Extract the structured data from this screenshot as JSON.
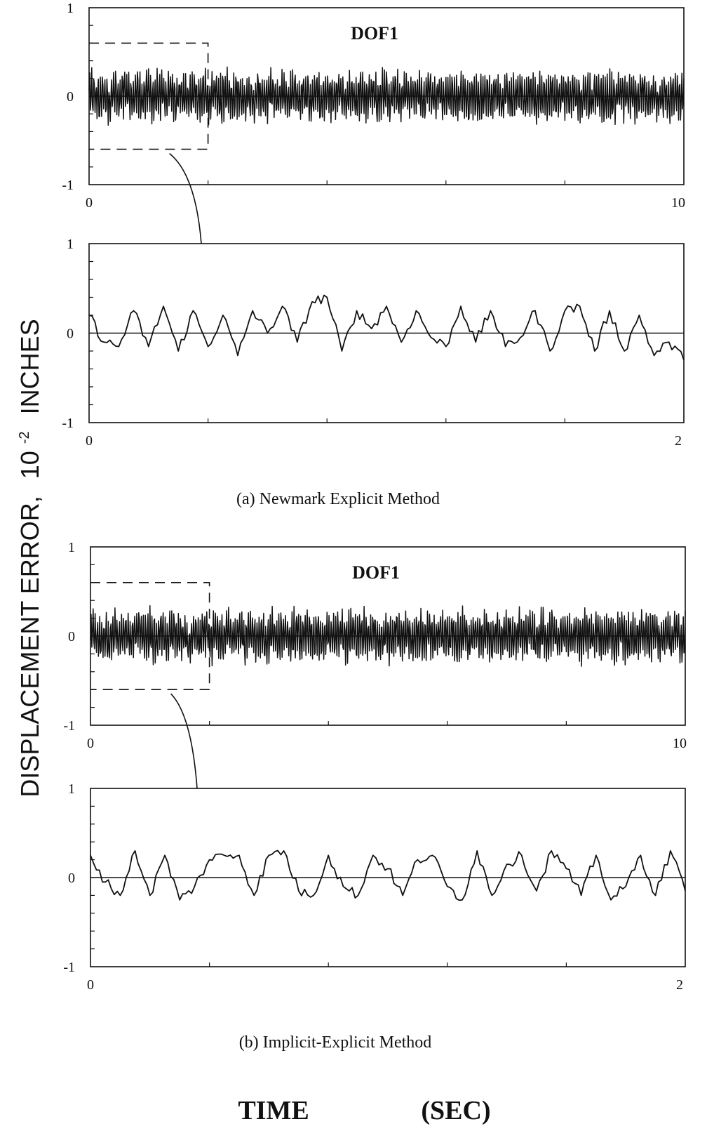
{
  "figure": {
    "ylabel": "DISPLACEMENT ERROR,",
    "ylabel_unit": "INCHES",
    "ylabel_scale_base": "10",
    "ylabel_scale_exp": "-2",
    "xlabel_main": "TIME",
    "xlabel_unit": "(SEC)",
    "caption_a": "(a) Newmark Explicit Method",
    "caption_b": "(b) Implicit-Explicit Method"
  },
  "chart_data": [
    {
      "id": "a_full",
      "type": "line",
      "title": "DOF1",
      "xlim": [
        0,
        10
      ],
      "ylim": [
        -1,
        1
      ],
      "xticks_labeled": [
        "0",
        "10"
      ],
      "yticks": [
        "1",
        "0",
        "-1"
      ],
      "zoom_window": {
        "x": [
          0,
          2
        ],
        "y": [
          -0.6,
          0.6
        ]
      },
      "signal": {
        "samples": 900,
        "amplitude_envelope": [
          -0.42,
          0.42
        ],
        "typical_range": [
          -0.3,
          0.3
        ]
      },
      "series": [
        {
          "x": [
            0,
            0.5,
            1,
            1.5,
            2,
            2.5,
            3,
            3.5,
            4,
            4.5,
            5,
            5.5,
            6,
            6.5,
            7,
            7.5,
            8,
            8.5,
            9,
            9.5,
            10
          ],
          "y": [
            0.2,
            -0.25,
            0.3,
            -0.2,
            0.25,
            0.3,
            -0.2,
            0.28,
            -0.3,
            0.25,
            -0.2,
            0.3,
            -0.25,
            0.28,
            -0.3,
            0.25,
            0.35,
            -0.25,
            0.3,
            -0.25,
            -0.1
          ]
        }
      ]
    },
    {
      "id": "a_zoom",
      "type": "line",
      "xlim": [
        0,
        2
      ],
      "ylim": [
        -1,
        1
      ],
      "xticks_labeled": [
        "0",
        "2"
      ],
      "yticks": [
        "1",
        "0",
        "-1"
      ],
      "series": [
        {
          "x": [
            0,
            0.05,
            0.1,
            0.15,
            0.2,
            0.25,
            0.3,
            0.35,
            0.4,
            0.45,
            0.5,
            0.55,
            0.6,
            0.65,
            0.7,
            0.75,
            0.8,
            0.85,
            0.9,
            0.95,
            1.0,
            1.05,
            1.1,
            1.15,
            1.2,
            1.25,
            1.3,
            1.35,
            1.4,
            1.45,
            1.5,
            1.55,
            1.6,
            1.65,
            1.7,
            1.75,
            1.8,
            1.85,
            1.9,
            1.95,
            2.0
          ],
          "y": [
            0.2,
            -0.1,
            -0.15,
            0.25,
            -0.15,
            0.3,
            -0.2,
            0.25,
            -0.15,
            0.2,
            -0.25,
            0.25,
            0.0,
            0.3,
            -0.1,
            0.35,
            0.4,
            -0.2,
            0.25,
            0.05,
            0.3,
            -0.1,
            0.25,
            -0.05,
            -0.15,
            0.3,
            -0.1,
            0.25,
            -0.15,
            -0.05,
            0.25,
            -0.2,
            0.25,
            0.3,
            -0.2,
            0.25,
            -0.2,
            0.2,
            -0.25,
            -0.1,
            -0.3
          ]
        }
      ]
    },
    {
      "id": "b_full",
      "type": "line",
      "title": "DOF1",
      "xlim": [
        0,
        10
      ],
      "ylim": [
        -1,
        1
      ],
      "xticks_labeled": [
        "0",
        "10"
      ],
      "yticks": [
        "1",
        "0",
        "-1"
      ],
      "zoom_window": {
        "x": [
          0,
          2
        ],
        "y": [
          -0.6,
          0.6
        ]
      },
      "signal": {
        "samples": 900,
        "amplitude_envelope": [
          -0.38,
          0.4
        ],
        "typical_range": [
          -0.3,
          0.3
        ]
      },
      "series": [
        {
          "x": [
            0,
            0.5,
            1,
            1.5,
            2,
            2.5,
            3,
            3.5,
            4,
            4.5,
            5,
            5.5,
            6,
            6.5,
            7,
            7.5,
            8,
            8.5,
            9,
            9.5,
            10
          ],
          "y": [
            0.25,
            -0.25,
            0.3,
            -0.3,
            0.4,
            -0.2,
            0.28,
            -0.3,
            0.25,
            -0.35,
            0.3,
            -0.25,
            0.35,
            -0.3,
            0.3,
            -0.25,
            0.28,
            -0.3,
            0.3,
            -0.25,
            -0.2
          ]
        }
      ]
    },
    {
      "id": "b_zoom",
      "type": "line",
      "xlim": [
        0,
        2
      ],
      "ylim": [
        -1,
        1
      ],
      "xticks_labeled": [
        "0",
        "2"
      ],
      "yticks": [
        "1",
        "0",
        "-1"
      ],
      "series": [
        {
          "x": [
            0,
            0.05,
            0.1,
            0.15,
            0.2,
            0.25,
            0.3,
            0.35,
            0.4,
            0.45,
            0.5,
            0.55,
            0.6,
            0.65,
            0.7,
            0.75,
            0.8,
            0.85,
            0.9,
            0.95,
            1.0,
            1.05,
            1.1,
            1.15,
            1.2,
            1.25,
            1.3,
            1.35,
            1.4,
            1.45,
            1.5,
            1.55,
            1.6,
            1.65,
            1.7,
            1.75,
            1.8,
            1.85,
            1.9,
            1.95,
            2.0
          ],
          "y": [
            0.25,
            -0.05,
            -0.2,
            0.3,
            -0.2,
            0.25,
            -0.25,
            -0.1,
            0.2,
            0.25,
            0.25,
            -0.2,
            0.25,
            0.3,
            -0.15,
            -0.2,
            0.25,
            -0.1,
            -0.2,
            0.25,
            0.1,
            -0.2,
            0.2,
            0.25,
            -0.1,
            -0.25,
            0.3,
            -0.2,
            0.15,
            0.25,
            -0.15,
            0.3,
            0.1,
            -0.2,
            0.25,
            -0.25,
            -0.1,
            0.25,
            -0.2,
            0.3,
            -0.15
          ]
        }
      ]
    }
  ]
}
